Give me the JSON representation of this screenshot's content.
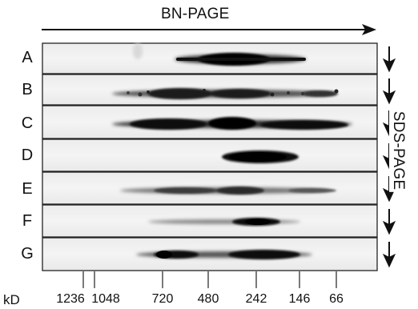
{
  "axis": {
    "first_dimension": "BN-PAGE",
    "second_dimension": "SDS-PAGE",
    "unit": "kD"
  },
  "lanes": [
    {
      "label": "A"
    },
    {
      "label": "B"
    },
    {
      "label": "C"
    },
    {
      "label": "D"
    },
    {
      "label": "E"
    },
    {
      "label": "F"
    },
    {
      "label": "G"
    }
  ],
  "markers": [
    {
      "label": "1236"
    },
    {
      "label": "1048"
    },
    {
      "label": "720"
    },
    {
      "label": "480"
    },
    {
      "label": "242"
    },
    {
      "label": "146"
    },
    {
      "label": "66"
    }
  ]
}
